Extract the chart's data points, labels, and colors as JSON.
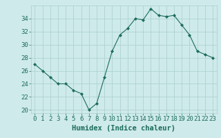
{
  "x": [
    0,
    1,
    2,
    3,
    4,
    5,
    6,
    7,
    8,
    9,
    10,
    11,
    12,
    13,
    14,
    15,
    16,
    17,
    18,
    19,
    20,
    21,
    22,
    23
  ],
  "y": [
    27,
    26,
    25,
    24,
    24,
    23,
    22.5,
    20,
    21,
    25,
    29,
    31.5,
    32.5,
    34,
    33.8,
    35.5,
    34.5,
    34.3,
    34.5,
    33,
    31.5,
    29,
    28.5,
    28
  ],
  "xlabel": "Humidex (Indice chaleur)",
  "xlim": [
    -0.5,
    23.5
  ],
  "ylim": [
    19.5,
    36
  ],
  "yticks": [
    20,
    22,
    24,
    26,
    28,
    30,
    32,
    34
  ],
  "xticks": [
    0,
    1,
    2,
    3,
    4,
    5,
    6,
    7,
    8,
    9,
    10,
    11,
    12,
    13,
    14,
    15,
    16,
    17,
    18,
    19,
    20,
    21,
    22,
    23
  ],
  "line_color": "#1a6b5a",
  "marker": "D",
  "marker_size": 2.2,
  "bg_color": "#ceeaea",
  "grid_color": "#aacece",
  "tick_label_color": "#1a6b5a",
  "xlabel_color": "#1a6b5a",
  "xlabel_fontsize": 7.5,
  "tick_fontsize": 6.5
}
